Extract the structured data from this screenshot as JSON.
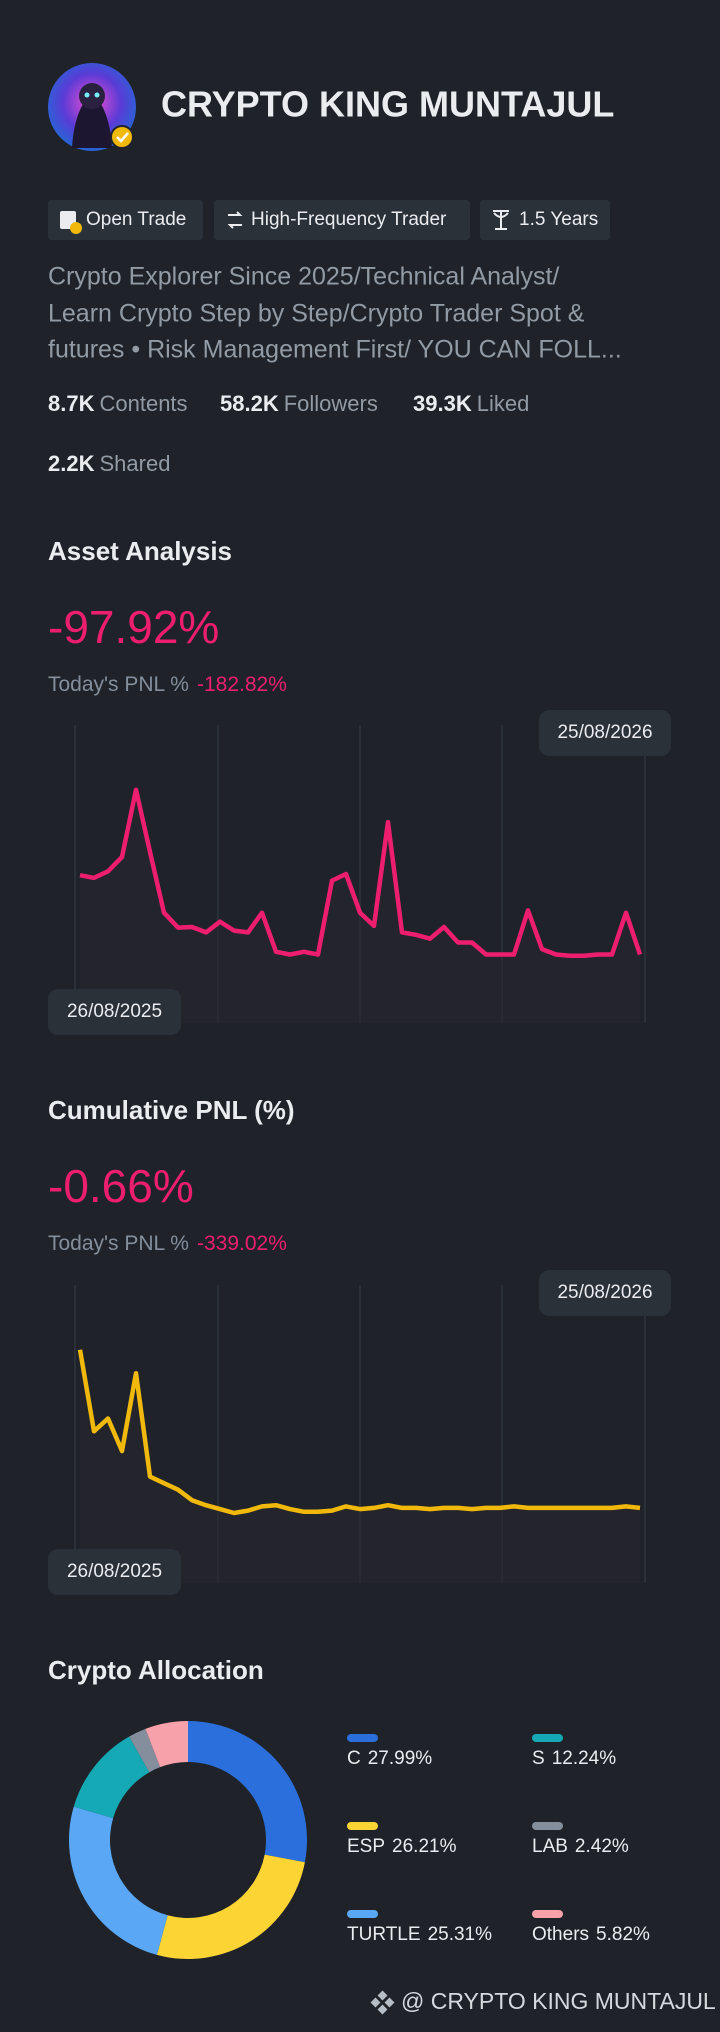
{
  "profile": {
    "name": "CRYPTO KING MUNTAJUL",
    "tags": [
      "Open Trade",
      "High-Frequency Trader",
      "1.5 Years"
    ],
    "bio": [
      "Crypto Explorer Since 2025/Technical Analyst/",
      "Learn Crypto Step by Step/Crypto Trader Spot &",
      "futures • Risk Management First/ YOU CAN FOLL..."
    ],
    "stats": [
      {
        "value": "8.7K",
        "label": "Contents"
      },
      {
        "value": "58.2K",
        "label": "Followers"
      },
      {
        "value": "39.3K",
        "label": "Liked"
      },
      {
        "value": "2.2K",
        "label": "Shared"
      }
    ]
  },
  "chart_data": [
    {
      "type": "line",
      "title": "Asset Analysis",
      "headline": "-97.92%",
      "pnl_label": "Today's PNL %",
      "pnl_value": "-182.82%",
      "start_date": "26/08/2025",
      "end_date": "25/08/2026",
      "color": "#ee1e6e",
      "ylim": [
        0,
        100
      ],
      "values": [
        49.6,
        48.7,
        50.9,
        55.7,
        78.3,
        57.4,
        37.0,
        32.0,
        32.2,
        30.4,
        34.0,
        31.0,
        30.4,
        37.0,
        23.9,
        23.0,
        23.9,
        23.0,
        47.8,
        50.0,
        37.0,
        32.6,
        67.4,
        30.4,
        29.6,
        28.3,
        32.2,
        27.0,
        27.0,
        23.0,
        23.0,
        23.0,
        37.8,
        24.8,
        23.0,
        22.6,
        22.6,
        23.0,
        23.0,
        37.0,
        23.0
      ]
    },
    {
      "type": "line",
      "title": "Cumulative PNL (%)",
      "headline": "-0.66%",
      "pnl_label": "Today's PNL %",
      "pnl_value": "-339.02%",
      "start_date": "26/08/2025",
      "end_date": "25/08/2026",
      "color": "#f0b90b",
      "ylim": [
        0,
        100
      ],
      "values": [
        78.3,
        50.9,
        55.2,
        44.3,
        70.4,
        35.7,
        33.5,
        31.3,
        27.8,
        26.1,
        24.8,
        23.5,
        24.3,
        25.7,
        26.1,
        24.8,
        23.9,
        23.9,
        24.3,
        25.7,
        24.8,
        25.2,
        26.1,
        25.2,
        25.2,
        24.8,
        25.2,
        25.2,
        24.8,
        25.2,
        25.2,
        25.7,
        25.2,
        25.2,
        25.2,
        25.2,
        25.2,
        25.2,
        25.2,
        25.7,
        25.2
      ]
    },
    {
      "type": "pie",
      "title": "Crypto Allocation",
      "categories": [
        "C",
        "ESP",
        "TURTLE",
        "S",
        "LAB",
        "Others"
      ],
      "values": [
        27.99,
        26.21,
        25.31,
        12.24,
        2.42,
        5.82
      ],
      "value_labels": [
        "27.99%",
        "26.21%",
        "25.31%",
        "12.24%",
        "2.42%",
        "5.82%"
      ],
      "colors": [
        "#2a6fdb",
        "#fcd535",
        "#5aa8f5",
        "#14a9b4",
        "#848e9c",
        "#f7a1ab"
      ]
    }
  ],
  "footer": "@ CRYPTO KING MUNTAJUL"
}
